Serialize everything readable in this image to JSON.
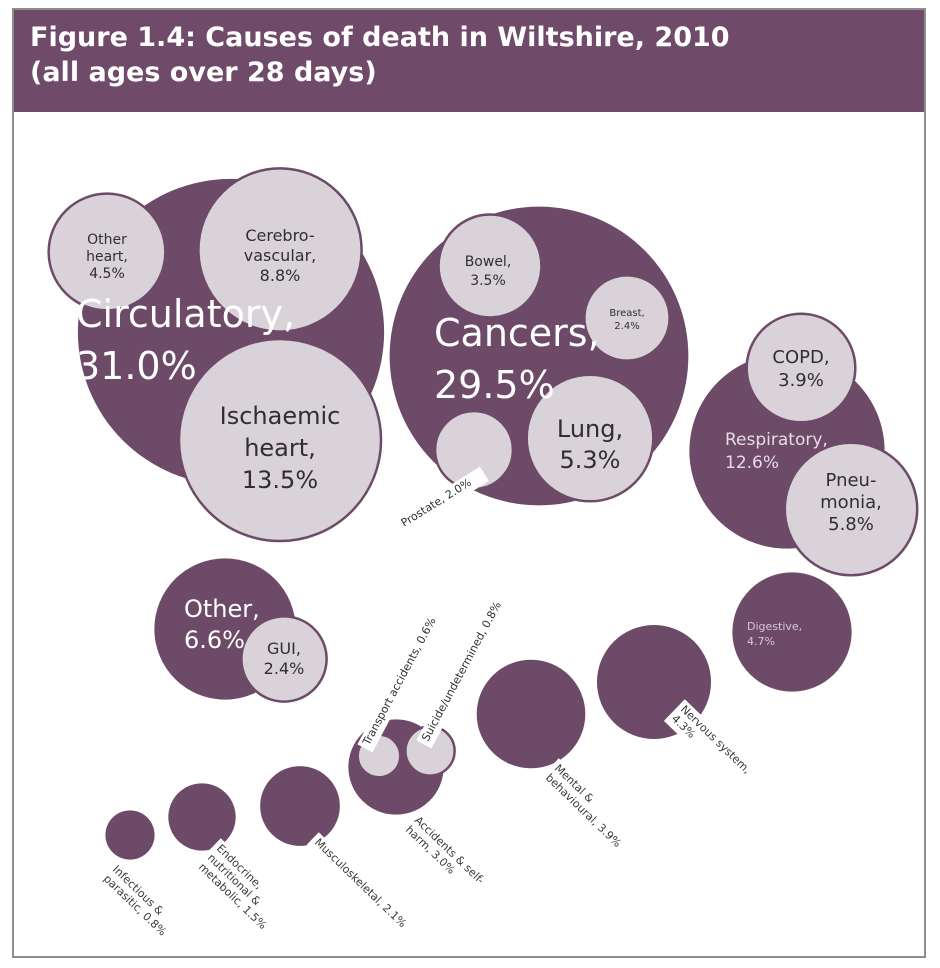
{
  "figure": {
    "title_line1": "Figure 1.4: Causes of death in Wiltshire, 2010",
    "title_line2": "(all ages over 28 days)"
  },
  "colors": {
    "header_bg": "#6f4a69",
    "parent_fill": "#6d4a68",
    "child_fill": "#d9d3d9",
    "frame_border": "#8d8d8d"
  },
  "chart_data": {
    "type": "bubble",
    "title": "Figure 1.4: Causes of death in Wiltshire, 2010 (all ages over 28 days)",
    "unit": "%",
    "groups": [
      {
        "label": "Circulatory, 31.0%",
        "name": "Circulatory",
        "value": 31.0,
        "children": [
          {
            "label": "Other heart, 4.5%",
            "name": "Other heart",
            "value": 4.5
          },
          {
            "label": "Cerebro-vascular, 8.8%",
            "name": "Cerebrovascular",
            "value": 8.8
          },
          {
            "label": "Ischaemic heart, 13.5%",
            "name": "Ischaemic heart",
            "value": 13.5
          }
        ]
      },
      {
        "label": "Cancers, 29.5%",
        "name": "Cancers",
        "value": 29.5,
        "children": [
          {
            "label": "Bowel, 3.5%",
            "name": "Bowel",
            "value": 3.5
          },
          {
            "label": "Breast, 2.4%",
            "name": "Breast",
            "value": 2.4
          },
          {
            "label": "Lung, 5.3%",
            "name": "Lung",
            "value": 5.3
          },
          {
            "label": "Prostate, 2.0%",
            "name": "Prostate",
            "value": 2.0
          }
        ]
      },
      {
        "label": "Respiratory, 12.6%",
        "name": "Respiratory",
        "value": 12.6,
        "children": [
          {
            "label": "COPD, 3.9%",
            "name": "COPD",
            "value": 3.9
          },
          {
            "label": "Pneumonia, 5.8%",
            "name": "Pneumonia",
            "value": 5.8
          }
        ]
      },
      {
        "label": "Other, 6.6%",
        "name": "Other",
        "value": 6.6,
        "children": [
          {
            "label": "GUI, 2.4%",
            "name": "GUI",
            "value": 2.4
          }
        ]
      },
      {
        "label": "Digestive, 4.7%",
        "name": "Digestive",
        "value": 4.7,
        "children": []
      },
      {
        "label": "Nervous system, 4.3%",
        "name": "Nervous system",
        "value": 4.3,
        "children": []
      },
      {
        "label": "Mental & behavioural, 3.9%",
        "name": "Mental & behavioural",
        "value": 3.9,
        "children": []
      },
      {
        "label": "Accidents & self-harm, 3.0%",
        "name": "Accidents & self-harm",
        "value": 3.0,
        "children": [
          {
            "label": "Transport accidents, 0.6%",
            "name": "Transport accidents",
            "value": 0.6
          },
          {
            "label": "Suicide/undetermined, 0.8%",
            "name": "Suicide/undetermined",
            "value": 0.8
          }
        ]
      },
      {
        "label": "Musculoskeletal, 2.1%",
        "name": "Musculoskeletal",
        "value": 2.1,
        "children": []
      },
      {
        "label": "Endocrine, nutritional & metabolic, 1.5%",
        "name": "Endocrine, nutritional & metabolic",
        "value": 1.5,
        "children": []
      },
      {
        "label": "Infectious & parasitic, 0.8%",
        "name": "Infectious & parasitic",
        "value": 0.8,
        "children": []
      }
    ]
  }
}
